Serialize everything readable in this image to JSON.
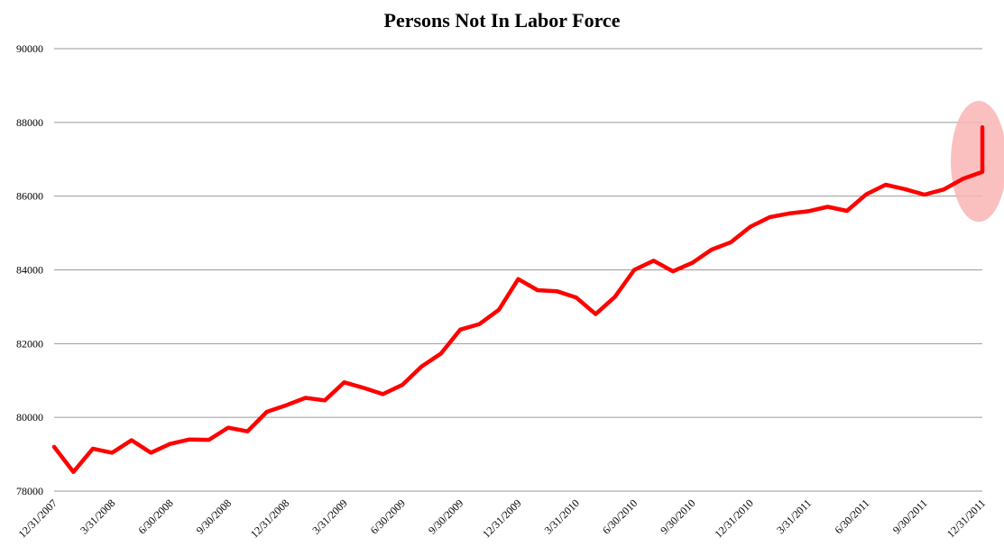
{
  "chart_data": {
    "type": "line",
    "title": "Persons Not In Labor Force",
    "xlabel": "",
    "ylabel": "",
    "ylim": [
      78000,
      90000
    ],
    "yticks": [
      78000,
      80000,
      82000,
      84000,
      86000,
      88000,
      90000
    ],
    "ytick_labels": [
      "78000",
      "80000",
      "82000",
      "84000",
      "86000",
      "88000",
      "90000"
    ],
    "x_tick_labels": [
      "12/31/2007",
      "3/31/2008",
      "6/30/2008",
      "9/30/2008",
      "12/31/2008",
      "3/31/2009",
      "6/30/2009",
      "9/30/2009",
      "12/31/2009",
      "3/31/2010",
      "6/30/2010",
      "9/30/2010",
      "12/31/2010",
      "3/31/2011",
      "6/30/2011",
      "9/30/2011",
      "12/31/2011"
    ],
    "grid": true,
    "legend": "none",
    "series": [
      {
        "color": "#ff0000",
        "x": [
          "12/31/2007",
          "1/31/2008",
          "2/29/2008",
          "3/31/2008",
          "4/30/2008",
          "5/31/2008",
          "6/30/2008",
          "7/31/2008",
          "8/31/2008",
          "9/30/2008",
          "10/31/2008",
          "11/30/2008",
          "12/31/2008",
          "1/31/2009",
          "2/28/2009",
          "3/31/2009",
          "4/30/2009",
          "5/31/2009",
          "6/30/2009",
          "7/31/2009",
          "8/31/2009",
          "9/30/2009",
          "10/31/2009",
          "11/30/2009",
          "12/31/2009",
          "1/31/2010",
          "2/28/2010",
          "3/31/2010",
          "4/30/2010",
          "5/31/2010",
          "6/30/2010",
          "7/31/2010",
          "8/31/2010",
          "9/30/2010",
          "10/31/2010",
          "11/30/2010",
          "12/31/2010",
          "1/31/2011",
          "2/28/2011",
          "3/31/2011",
          "4/30/2011",
          "5/31/2011",
          "6/30/2011",
          "7/31/2011",
          "8/31/2011",
          "9/30/2011",
          "10/31/2011",
          "11/30/2011",
          "12/31/2011",
          "12/31/2011"
        ],
        "values": [
          79200,
          78520,
          79150,
          79040,
          79380,
          79040,
          79280,
          79400,
          79390,
          79720,
          79620,
          80150,
          80330,
          80530,
          80460,
          80950,
          80800,
          80630,
          80880,
          81380,
          81730,
          82380,
          82530,
          82920,
          83750,
          83450,
          83420,
          83250,
          82800,
          83270,
          84000,
          84250,
          83960,
          84190,
          84550,
          84750,
          85170,
          85430,
          85530,
          85590,
          85710,
          85600,
          86050,
          86310,
          86190,
          86040,
          86180,
          86470,
          86660,
          87870
        ]
      }
    ],
    "annotations": [
      {
        "type": "ellipse-highlight",
        "color": "#f9b5b5",
        "x": "12/31/2011",
        "y_range": [
          85400,
          87900
        ]
      }
    ]
  }
}
